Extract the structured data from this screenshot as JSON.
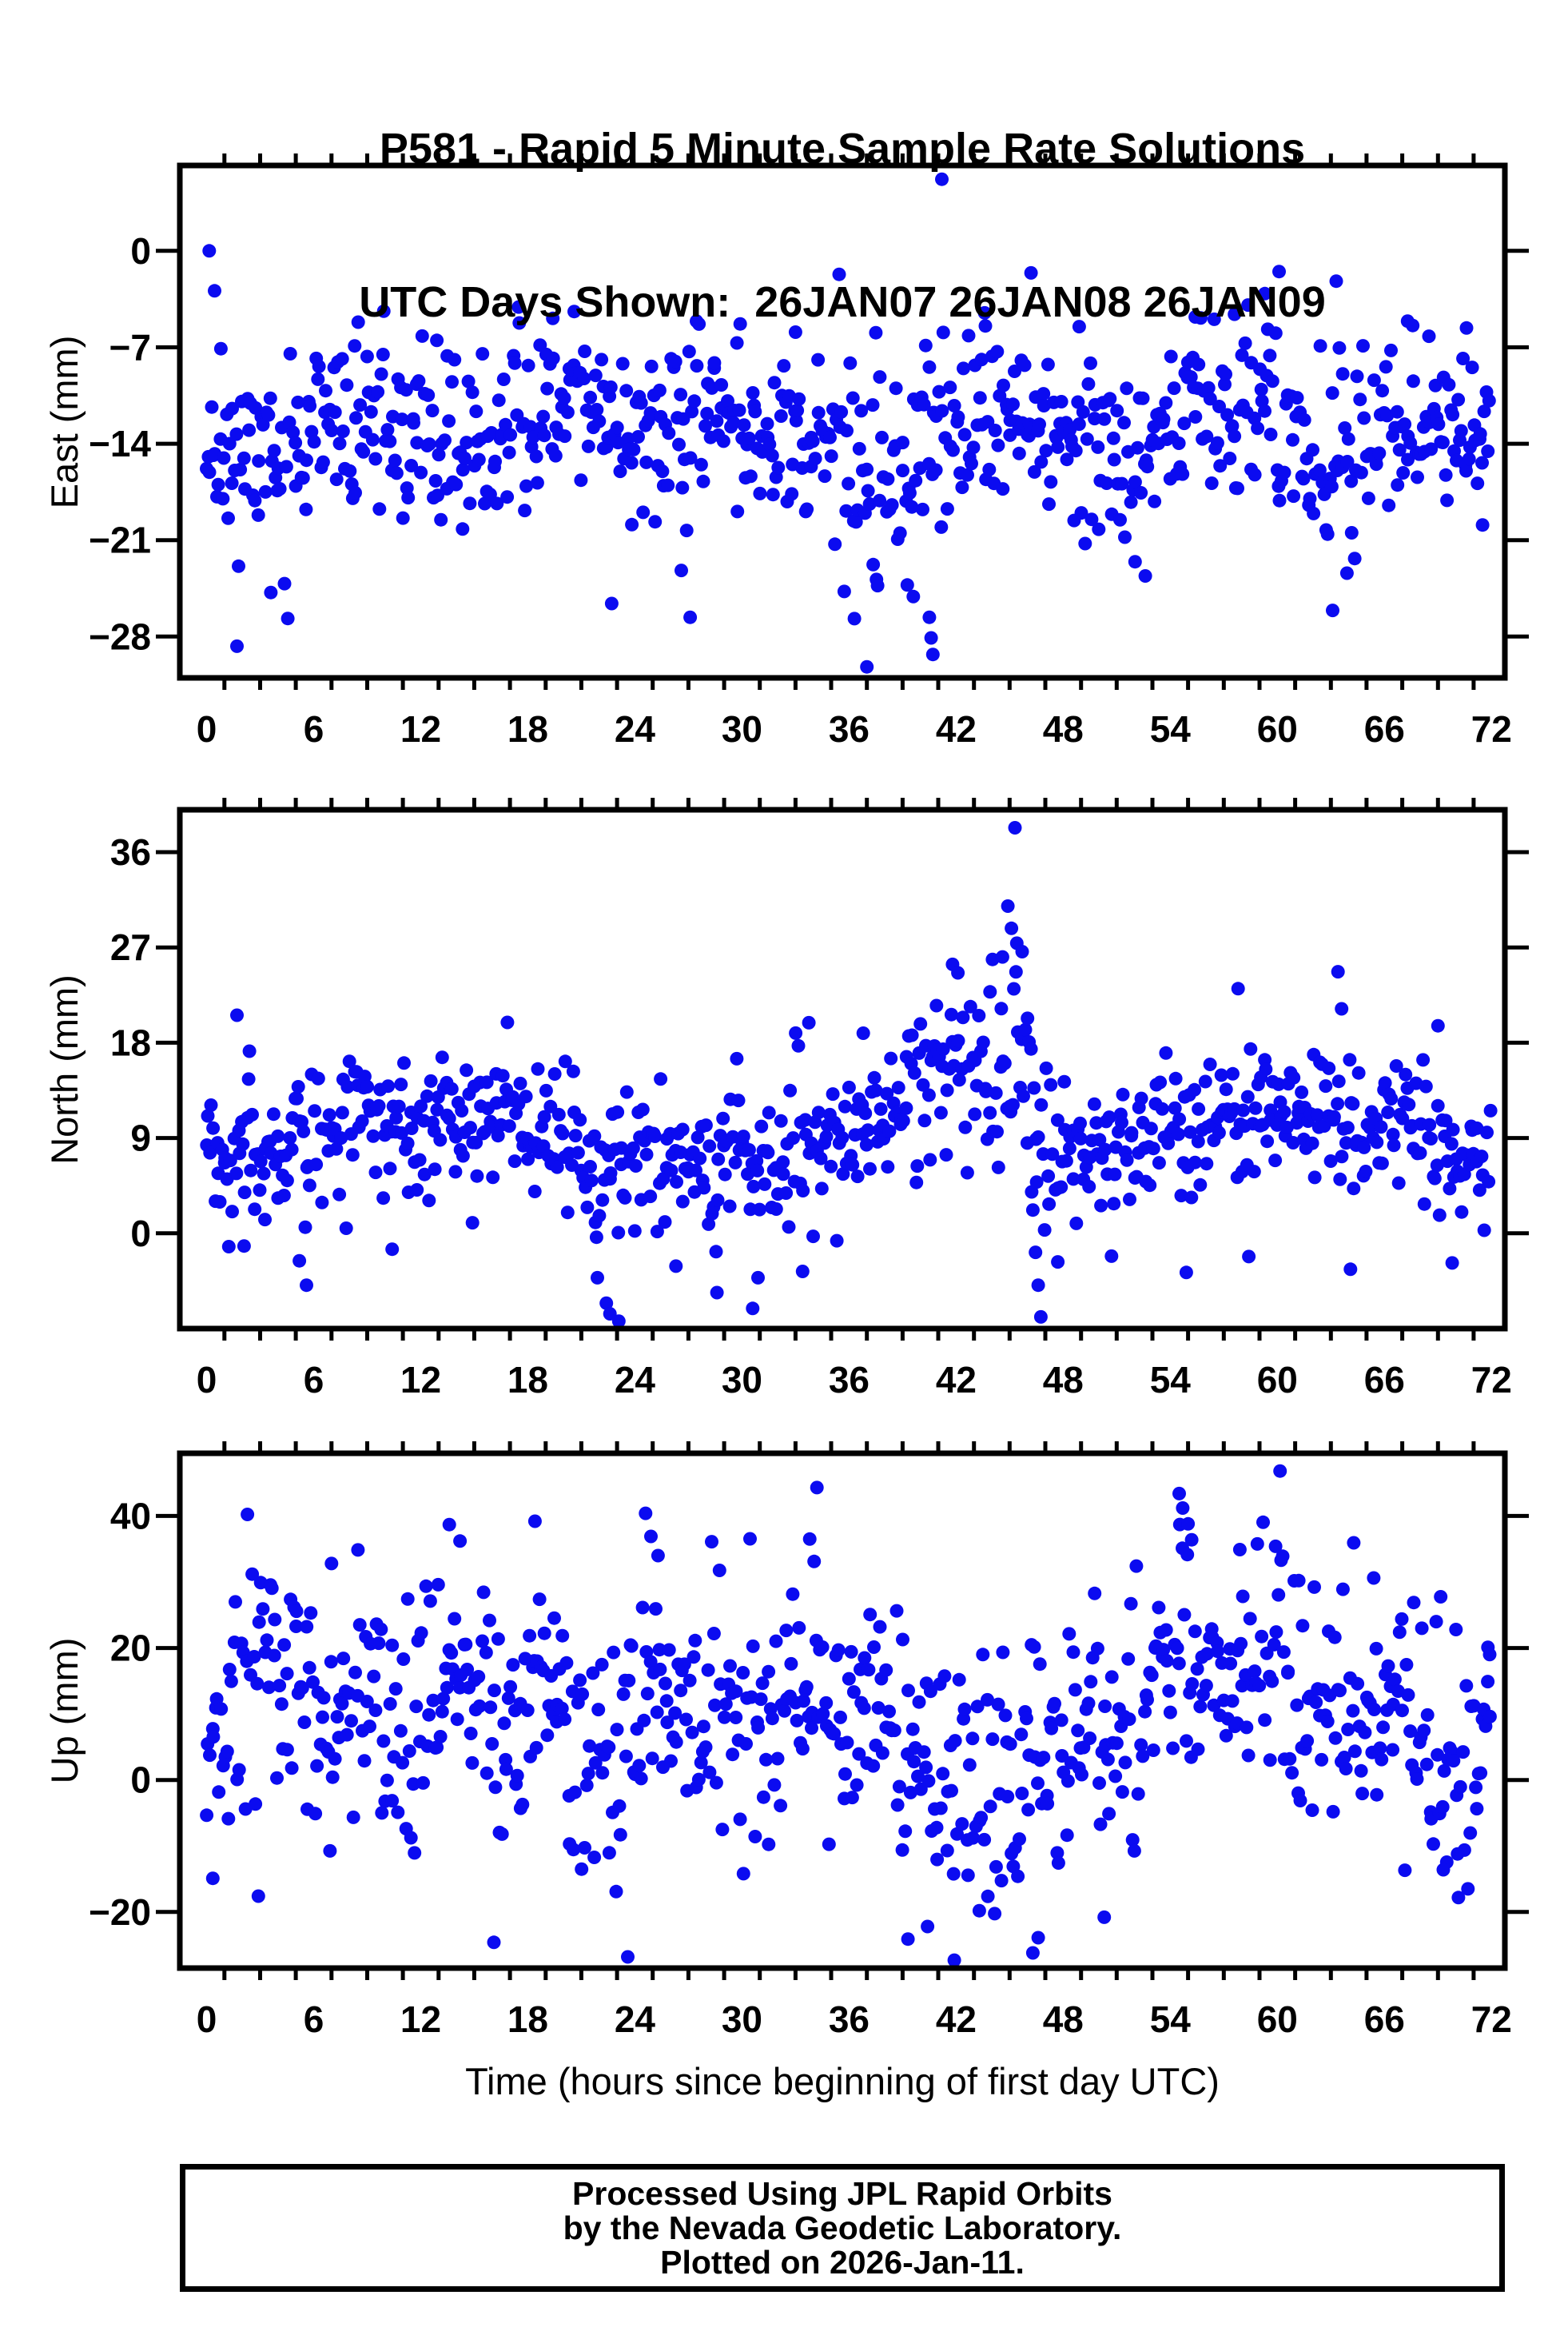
{
  "header": {
    "title_line1": "P581 - Rapid 5 Minute Sample Rate Solutions",
    "title_line2": "UTC Days Shown:  26JAN07 26JAN08 26JAN09"
  },
  "footer": {
    "line1": "Processed Using JPL Rapid Orbits",
    "line2": "by the Nevada Geodetic Laboratory.",
    "line3": "Plotted on 2026-Jan-11."
  },
  "chart_data": [
    {
      "id": "east",
      "type": "scatter",
      "ylabel": "East (mm)",
      "xlabel": "",
      "xlim": [
        -1.5,
        72.75
      ],
      "ylim": [
        -31.0,
        6.2
      ],
      "xticks": [
        0,
        6,
        12,
        18,
        24,
        30,
        36,
        42,
        48,
        54,
        60,
        66,
        72
      ],
      "xminor_step": 2,
      "yticks": [
        0,
        -7,
        -14,
        -21,
        -28
      ],
      "point_color": "#0b0bf0",
      "marker": "filled-circle",
      "n_points_visible_approx": 760,
      "points_model": {
        "seed": 11,
        "n": 730,
        "mean_anchors": [
          [
            0,
            -13
          ],
          [
            1.5,
            -15.5
          ],
          [
            3,
            -15
          ],
          [
            5,
            -14.5
          ],
          [
            7,
            -13
          ],
          [
            9,
            -12.5
          ],
          [
            11,
            -13.5
          ],
          [
            13,
            -14.5
          ],
          [
            15,
            -15
          ],
          [
            17,
            -14
          ],
          [
            18.5,
            -12
          ],
          [
            20,
            -9.5
          ],
          [
            21.5,
            -10.5
          ],
          [
            23,
            -13.5
          ],
          [
            25,
            -13.5
          ],
          [
            27,
            -12.5
          ],
          [
            29,
            -12
          ],
          [
            31,
            -12.5
          ],
          [
            33,
            -13.5
          ],
          [
            35,
            -15
          ],
          [
            36.5,
            -16.5
          ],
          [
            38,
            -16.5
          ],
          [
            39.5,
            -15.5
          ],
          [
            41,
            -14.5
          ],
          [
            42.5,
            -13
          ],
          [
            44,
            -12.5
          ],
          [
            46,
            -13
          ],
          [
            48,
            -14
          ],
          [
            50,
            -14
          ],
          [
            52,
            -14.5
          ],
          [
            54,
            -12.5
          ],
          [
            56,
            -11
          ],
          [
            57.5,
            -10.5
          ],
          [
            59,
            -11.5
          ],
          [
            61,
            -13.5
          ],
          [
            63,
            -14.5
          ],
          [
            65,
            -13.5
          ],
          [
            67,
            -12.5
          ],
          [
            69,
            -13
          ],
          [
            71,
            -12.5
          ],
          [
            72,
            -12
          ]
        ],
        "sd_anchors": [
          [
            0,
            3.2
          ],
          [
            18,
            3.2
          ],
          [
            20,
            2.8
          ],
          [
            24,
            3.0
          ],
          [
            34,
            3.4
          ],
          [
            37,
            4.6
          ],
          [
            41,
            4.6
          ],
          [
            43,
            3.2
          ],
          [
            60,
            3.2
          ],
          [
            63,
            4.0
          ],
          [
            66,
            3.2
          ],
          [
            72,
            3.0
          ]
        ],
        "notable_points": [
          [
            0.15,
            0.0
          ],
          [
            0.45,
            -2.9
          ],
          [
            0.8,
            -7.1
          ],
          [
            1.7,
            -28.7
          ],
          [
            3.6,
            -24.8
          ],
          [
            8.3,
            -6.9
          ],
          [
            12.9,
            -6.5
          ],
          [
            19.4,
            -4.9
          ],
          [
            20.6,
            -4.4
          ],
          [
            22.7,
            -25.6
          ],
          [
            26.6,
            -23.2
          ],
          [
            27.1,
            -26.6
          ],
          [
            29.9,
            -5.3
          ],
          [
            33.0,
            -5.9
          ],
          [
            36.3,
            -26.7
          ],
          [
            37.0,
            -30.2
          ],
          [
            37.6,
            -24.3
          ],
          [
            39.6,
            -25.1
          ],
          [
            40.5,
            -26.6
          ],
          [
            40.6,
            -28.1
          ],
          [
            40.7,
            -29.3
          ],
          [
            41.2,
            5.2
          ],
          [
            43.6,
            -4.5
          ],
          [
            46.2,
            -1.6
          ],
          [
            48.9,
            -5.5
          ],
          [
            52.6,
            -23.6
          ],
          [
            55.4,
            -4.8
          ],
          [
            57.6,
            -4.6
          ],
          [
            59.3,
            -3.1
          ],
          [
            60.1,
            -1.5
          ],
          [
            63.3,
            -2.2
          ],
          [
            63.1,
            -26.1
          ],
          [
            63.9,
            -23.4
          ],
          [
            67.3,
            -5.1
          ],
          [
            70.6,
            -5.6
          ],
          [
            71.5,
            -19.9
          ]
        ]
      }
    },
    {
      "id": "north",
      "type": "scatter",
      "ylabel": "North (mm)",
      "xlabel": "",
      "xlim": [
        -1.5,
        72.75
      ],
      "ylim": [
        -9.0,
        40.0
      ],
      "xticks": [
        0,
        6,
        12,
        18,
        24,
        30,
        36,
        42,
        48,
        54,
        60,
        66,
        72
      ],
      "xminor_step": 2,
      "yticks": [
        36,
        27,
        18,
        9,
        0
      ],
      "point_color": "#0b0bf0",
      "marker": "filled-circle",
      "n_points_visible_approx": 770,
      "points_model": {
        "seed": 22,
        "n": 730,
        "mean_anchors": [
          [
            0,
            7.5
          ],
          [
            1,
            8.5
          ],
          [
            3,
            8
          ],
          [
            5,
            8
          ],
          [
            7,
            10
          ],
          [
            8.5,
            12
          ],
          [
            10,
            10
          ],
          [
            12,
            9.5
          ],
          [
            14,
            9
          ],
          [
            16,
            11
          ],
          [
            18,
            11.5
          ],
          [
            20,
            10
          ],
          [
            21.5,
            7
          ],
          [
            23,
            6
          ],
          [
            25,
            8
          ],
          [
            27,
            7.5
          ],
          [
            29,
            6.5
          ],
          [
            31,
            7
          ],
          [
            33,
            7.5
          ],
          [
            35,
            8
          ],
          [
            36.5,
            9.5
          ],
          [
            38,
            11
          ],
          [
            39.5,
            13
          ],
          [
            41,
            15
          ],
          [
            42.5,
            16.5
          ],
          [
            44,
            16
          ],
          [
            45,
            18
          ],
          [
            45.8,
            17
          ],
          [
            46.5,
            9
          ],
          [
            47.5,
            7.5
          ],
          [
            49,
            8
          ],
          [
            51,
            8.5
          ],
          [
            53,
            9
          ],
          [
            55,
            10
          ],
          [
            57,
            10.5
          ],
          [
            59,
            11
          ],
          [
            61,
            11.5
          ],
          [
            63,
            11
          ],
          [
            65,
            10.5
          ],
          [
            67,
            9.5
          ],
          [
            69,
            9
          ],
          [
            70.5,
            7
          ],
          [
            72,
            6.5
          ]
        ],
        "sd_anchors": [
          [
            0,
            3.1
          ],
          [
            20,
            3.3
          ],
          [
            24,
            3.3
          ],
          [
            40,
            3.6
          ],
          [
            43,
            4.2
          ],
          [
            46,
            4.4
          ],
          [
            48,
            3.2
          ],
          [
            72,
            3.2
          ]
        ],
        "notable_points": [
          [
            1.7,
            20.6
          ],
          [
            2.4,
            17.2
          ],
          [
            2.1,
            -1.2
          ],
          [
            5.2,
            -2.6
          ],
          [
            5.6,
            -4.9
          ],
          [
            10.4,
            -1.5
          ],
          [
            14.9,
            1.0
          ],
          [
            21.9,
            -4.2
          ],
          [
            22.4,
            -6.6
          ],
          [
            22.6,
            -7.6
          ],
          [
            23.1,
            -8.3
          ],
          [
            26.3,
            -3.1
          ],
          [
            28.6,
            -5.6
          ],
          [
            30.6,
            -7.1
          ],
          [
            30.9,
            -4.2
          ],
          [
            33.4,
            -3.6
          ],
          [
            36.8,
            18.9
          ],
          [
            40.9,
            21.5
          ],
          [
            41.8,
            25.4
          ],
          [
            42.1,
            24.6
          ],
          [
            43.9,
            22.8
          ],
          [
            44.6,
            26.1
          ],
          [
            44.9,
            30.9
          ],
          [
            45.1,
            28.8
          ],
          [
            45.3,
            38.3
          ],
          [
            45.4,
            27.4
          ],
          [
            45.7,
            26.6
          ],
          [
            46.0,
            20.3
          ],
          [
            46.3,
            2.2
          ],
          [
            46.45,
            -1.8
          ],
          [
            46.6,
            -4.9
          ],
          [
            46.75,
            -7.9
          ],
          [
            47.7,
            -2.7
          ],
          [
            54.9,
            -3.7
          ],
          [
            57.8,
            23.1
          ],
          [
            58.4,
            -2.2
          ],
          [
            63.4,
            24.7
          ],
          [
            63.6,
            21.2
          ],
          [
            64.1,
            -3.4
          ],
          [
            69.0,
            19.6
          ],
          [
            69.8,
            -2.8
          ]
        ]
      }
    },
    {
      "id": "up",
      "type": "scatter",
      "ylabel": "Up (mm)",
      "xlabel": "Time (hours since beginning of first day UTC)",
      "xlim": [
        -1.5,
        72.75
      ],
      "ylim": [
        -28.5,
        49.5
      ],
      "xticks": [
        0,
        6,
        12,
        18,
        24,
        30,
        36,
        42,
        48,
        54,
        60,
        66,
        72
      ],
      "xminor_step": 2,
      "yticks": [
        40,
        20,
        0,
        -20
      ],
      "point_color": "#0b0bf0",
      "marker": "filled-circle",
      "n_points_visible_approx": 740,
      "points_model": {
        "seed": 33,
        "n": 710,
        "mean_anchors": [
          [
            0,
            0
          ],
          [
            0.8,
            6
          ],
          [
            1.6,
            14
          ],
          [
            2.5,
            18
          ],
          [
            3.5,
            20
          ],
          [
            4.5,
            16
          ],
          [
            5.5,
            9
          ],
          [
            6.5,
            8
          ],
          [
            7.5,
            12
          ],
          [
            8.5,
            13
          ],
          [
            9.5,
            10
          ],
          [
            10.5,
            6
          ],
          [
            11.5,
            7
          ],
          [
            12.5,
            11
          ],
          [
            13.5,
            15
          ],
          [
            14.5,
            14
          ],
          [
            15.5,
            7
          ],
          [
            16.5,
            3
          ],
          [
            17.5,
            9
          ],
          [
            18.3,
            15
          ],
          [
            19,
            11
          ],
          [
            20,
            6
          ],
          [
            21,
            3
          ],
          [
            22,
            1
          ],
          [
            23,
            -1
          ],
          [
            24,
            9
          ],
          [
            25,
            15
          ],
          [
            26,
            9
          ],
          [
            27,
            7
          ],
          [
            28,
            5
          ],
          [
            29,
            8
          ],
          [
            30,
            9
          ],
          [
            31,
            7
          ],
          [
            32,
            9
          ],
          [
            33,
            13
          ],
          [
            34,
            15
          ],
          [
            35,
            11
          ],
          [
            36,
            9
          ],
          [
            37,
            11
          ],
          [
            38,
            12
          ],
          [
            39,
            4
          ],
          [
            40,
            0
          ],
          [
            41,
            1
          ],
          [
            42,
            -2
          ],
          [
            43,
            3
          ],
          [
            44,
            5
          ],
          [
            45,
            1
          ],
          [
            46,
            3
          ],
          [
            47,
            5
          ],
          [
            48,
            7
          ],
          [
            49,
            5
          ],
          [
            50,
            7
          ],
          [
            51,
            9
          ],
          [
            52,
            11
          ],
          [
            53,
            13
          ],
          [
            54,
            19
          ],
          [
            55,
            20
          ],
          [
            56,
            14
          ],
          [
            57,
            13
          ],
          [
            58,
            15
          ],
          [
            59,
            17
          ],
          [
            60,
            17
          ],
          [
            61,
            13
          ],
          [
            62,
            9
          ],
          [
            63,
            11
          ],
          [
            64,
            9
          ],
          [
            65,
            11
          ],
          [
            66,
            13
          ],
          [
            67,
            11
          ],
          [
            68,
            7
          ],
          [
            69,
            5
          ],
          [
            70,
            3
          ],
          [
            71,
            3
          ],
          [
            72,
            5
          ]
        ],
        "sd_anchors": [
          [
            0,
            9.5
          ],
          [
            72,
            9.5
          ]
        ],
        "notable_points": [
          [
            0.35,
            -14.9
          ],
          [
            2.9,
            -17.6
          ],
          [
            7.0,
            32.8
          ],
          [
            13.6,
            38.7
          ],
          [
            14.2,
            36.2
          ],
          [
            16.1,
            -24.6
          ],
          [
            18.4,
            39.2
          ],
          [
            23.6,
            -26.8
          ],
          [
            24.6,
            40.4
          ],
          [
            24.9,
            36.9
          ],
          [
            25.3,
            34.0
          ],
          [
            33.8,
            36.5
          ],
          [
            34.2,
            44.3
          ],
          [
            39.3,
            -24.1
          ],
          [
            40.4,
            -22.2
          ],
          [
            41.9,
            -27.3
          ],
          [
            43.3,
            -19.8
          ],
          [
            46.3,
            -26.2
          ],
          [
            46.6,
            -23.9
          ],
          [
            50.3,
            -20.8
          ],
          [
            54.5,
            43.4
          ],
          [
            54.7,
            41.2
          ],
          [
            55.0,
            38.8
          ],
          [
            55.2,
            36.4
          ],
          [
            57.9,
            34.9
          ],
          [
            59.9,
            35.4
          ],
          [
            60.3,
            33.9
          ],
          [
            61.2,
            30.2
          ],
          [
            65.4,
            30.6
          ],
          [
            69.3,
            -13.6
          ],
          [
            70.1,
            -11.2
          ],
          [
            71.8,
            20.1
          ],
          [
            71.9,
            19.0
          ]
        ]
      }
    }
  ]
}
